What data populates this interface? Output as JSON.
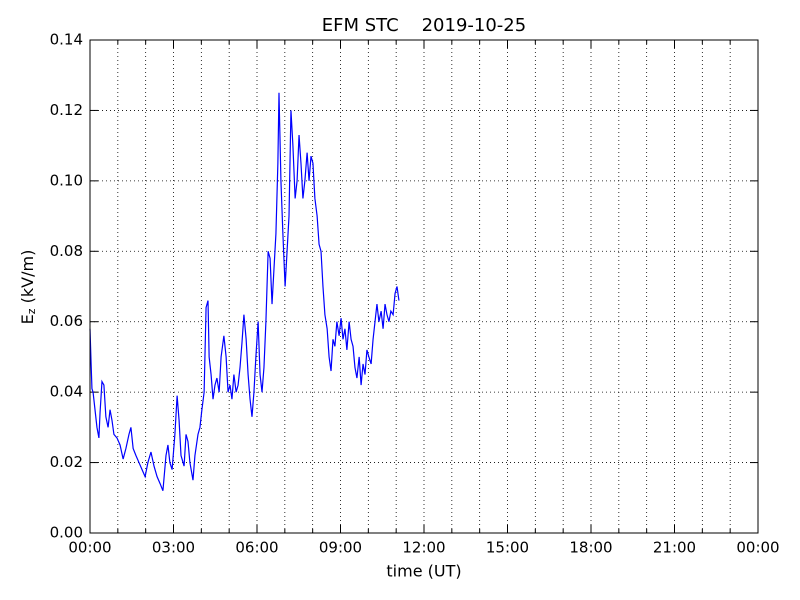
{
  "chart_data": {
    "type": "line",
    "title": "EFM STC    2019-10-25",
    "xlabel": "time (UT)",
    "ylabel": {
      "main": "E",
      "sub": "z",
      "unit": " (kV/m)"
    },
    "xlim": [
      0,
      24
    ],
    "ylim": [
      0,
      0.14
    ],
    "xticks": [
      {
        "value": 0,
        "label": "00:00"
      },
      {
        "value": 3,
        "label": "03:00"
      },
      {
        "value": 6,
        "label": "06:00"
      },
      {
        "value": 9,
        "label": "09:00"
      },
      {
        "value": 12,
        "label": "12:00"
      },
      {
        "value": 15,
        "label": "15:00"
      },
      {
        "value": 18,
        "label": "18:00"
      },
      {
        "value": 21,
        "label": "21:00"
      },
      {
        "value": 24,
        "label": "00:00"
      }
    ],
    "xminorticks": [
      1,
      2,
      4,
      5,
      7,
      8,
      10,
      11,
      13,
      14,
      16,
      17,
      19,
      20,
      22,
      23
    ],
    "yticks": [
      {
        "value": 0,
        "label": "0.00"
      },
      {
        "value": 0.02,
        "label": "0.02"
      },
      {
        "value": 0.04,
        "label": "0.04"
      },
      {
        "value": 0.06,
        "label": "0.06"
      },
      {
        "value": 0.08,
        "label": "0.08"
      },
      {
        "value": 0.1,
        "label": "0.10"
      },
      {
        "value": 0.12,
        "label": "0.12"
      },
      {
        "value": 0.14,
        "label": "0.14"
      }
    ],
    "grid": true,
    "x": [
      0,
      0.04,
      0.07,
      0.11,
      0.18,
      0.25,
      0.32,
      0.36,
      0.43,
      0.5,
      0.57,
      0.65,
      0.72,
      0.79,
      0.86,
      0.97,
      1.08,
      1.19,
      1.29,
      1.4,
      1.47,
      1.55,
      1.65,
      1.76,
      1.87,
      1.98,
      2.08,
      2.19,
      2.3,
      2.41,
      2.52,
      2.62,
      2.73,
      2.8,
      2.87,
      2.95,
      3.05,
      3.13,
      3.2,
      3.27,
      3.38,
      3.45,
      3.52,
      3.59,
      3.7,
      3.77,
      3.88,
      3.95,
      4.02,
      4.1,
      4.17,
      4.24,
      4.28,
      4.35,
      4.42,
      4.49,
      4.56,
      4.64,
      4.71,
      4.81,
      4.89,
      4.96,
      5.03,
      5.1,
      5.17,
      5.25,
      5.32,
      5.39,
      5.46,
      5.53,
      5.61,
      5.68,
      5.75,
      5.82,
      5.89,
      5.96,
      6.04,
      6.11,
      6.18,
      6.25,
      6.32,
      6.4,
      6.47,
      6.54,
      6.61,
      6.68,
      6.75,
      6.79,
      6.86,
      6.93,
      7.01,
      7.08,
      7.15,
      7.22,
      7.29,
      7.37,
      7.44,
      7.51,
      7.58,
      7.65,
      7.72,
      7.8,
      7.87,
      7.94,
      8.01,
      8.08,
      8.16,
      8.23,
      8.3,
      8.37,
      8.44,
      8.52,
      8.59,
      8.66,
      8.73,
      8.8,
      8.87,
      8.95,
      9.02,
      9.09,
      9.16,
      9.23,
      9.31,
      9.38,
      9.45,
      9.52,
      9.59,
      9.67,
      9.74,
      9.81,
      9.88,
      9.95,
      10.02,
      10.1,
      10.17,
      10.24,
      10.31,
      10.38,
      10.46,
      10.53,
      10.6,
      10.67,
      10.74,
      10.81,
      10.89,
      10.96,
      11.03,
      11.1
    ],
    "series": [
      {
        "color": "#0000ff",
        "values": [
          0.058,
          0.048,
          0.041,
          0.04,
          0.035,
          0.03,
          0.027,
          0.034,
          0.043,
          0.042,
          0.033,
          0.03,
          0.035,
          0.032,
          0.028,
          0.027,
          0.025,
          0.021,
          0.024,
          0.028,
          0.03,
          0.024,
          0.022,
          0.02,
          0.018,
          0.016,
          0.02,
          0.023,
          0.019,
          0.016,
          0.014,
          0.012,
          0.022,
          0.025,
          0.02,
          0.018,
          0.028,
          0.039,
          0.032,
          0.022,
          0.019,
          0.028,
          0.026,
          0.02,
          0.015,
          0.022,
          0.028,
          0.03,
          0.035,
          0.04,
          0.064,
          0.066,
          0.05,
          0.045,
          0.038,
          0.042,
          0.044,
          0.04,
          0.05,
          0.056,
          0.05,
          0.04,
          0.042,
          0.038,
          0.045,
          0.04,
          0.042,
          0.047,
          0.054,
          0.062,
          0.055,
          0.045,
          0.038,
          0.033,
          0.04,
          0.05,
          0.06,
          0.045,
          0.04,
          0.047,
          0.06,
          0.08,
          0.078,
          0.065,
          0.075,
          0.085,
          0.105,
          0.125,
          0.1,
          0.085,
          0.07,
          0.08,
          0.09,
          0.12,
          0.11,
          0.095,
          0.1,
          0.113,
          0.105,
          0.095,
          0.1,
          0.108,
          0.1,
          0.107,
          0.105,
          0.095,
          0.09,
          0.082,
          0.08,
          0.07,
          0.062,
          0.058,
          0.05,
          0.046,
          0.055,
          0.053,
          0.06,
          0.056,
          0.061,
          0.055,
          0.058,
          0.052,
          0.06,
          0.055,
          0.053,
          0.047,
          0.044,
          0.05,
          0.042,
          0.048,
          0.045,
          0.052,
          0.05,
          0.048,
          0.055,
          0.06,
          0.065,
          0.06,
          0.063,
          0.058,
          0.065,
          0.062,
          0.06,
          0.063,
          0.062,
          0.068,
          0.07,
          0.066
        ]
      }
    ]
  }
}
